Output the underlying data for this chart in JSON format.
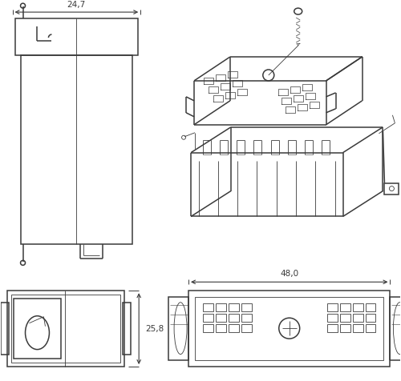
{
  "bg_color": "#ffffff",
  "lc": "#3a3a3a",
  "dc": "#3a3a3a",
  "lw": 1.1,
  "lwt": 0.6,
  "dim_24_7": "24,7",
  "dim_48_0": "48,0",
  "dim_25_8": "25,8"
}
